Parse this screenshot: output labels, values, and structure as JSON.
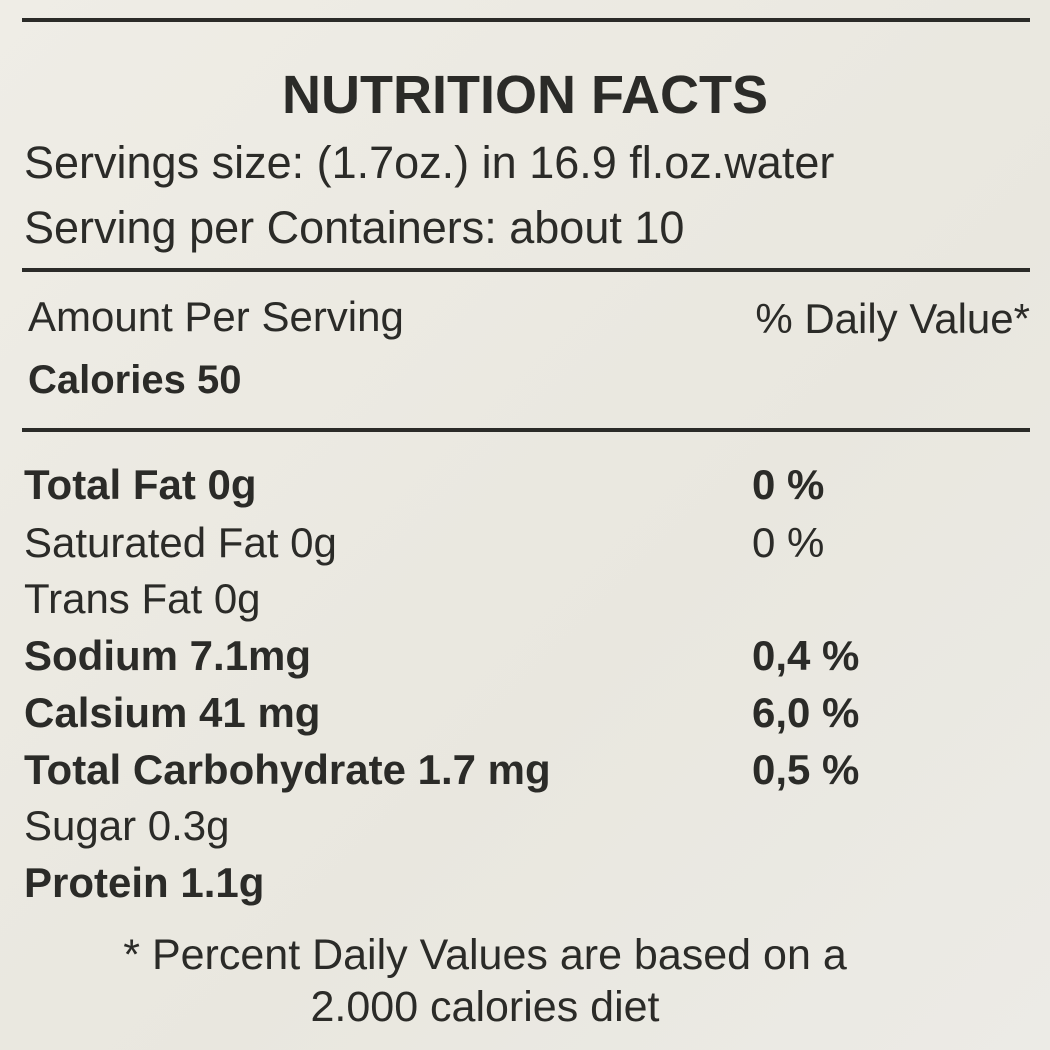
{
  "label": {
    "title": "NUTRITION FACTS",
    "serving_size": "Servings size: (1.7oz.) in 16.9 fl.oz.water",
    "servings_per_container": "Serving per Containers: about 10",
    "amount_header": "Amount Per Serving",
    "dv_header": "% Daily Value*",
    "calories": "Calories 50",
    "rows": [
      {
        "name": "Total Fat 0g",
        "dv": "0 %",
        "bold": true
      },
      {
        "name": "Saturated Fat 0g",
        "dv": "0 %",
        "bold": false
      },
      {
        "name": "Trans Fat 0g",
        "bold": false
      },
      {
        "name": "Sodium 7.1mg",
        "dv": "0,4 %",
        "bold": true
      },
      {
        "name": "Calsium 41 mg",
        "dv": "6,0 %",
        "bold": true
      },
      {
        "name": "Total Carbohydrate 1.7 mg",
        "dv": "0,5 %",
        "bold": true
      },
      {
        "name": "Sugar 0.3g",
        "bold": false
      },
      {
        "name": "Protein 1.1g",
        "bold": true
      }
    ],
    "footnote": [
      "* Percent Daily Values are based on a",
      "2.000 calories diet"
    ]
  }
}
